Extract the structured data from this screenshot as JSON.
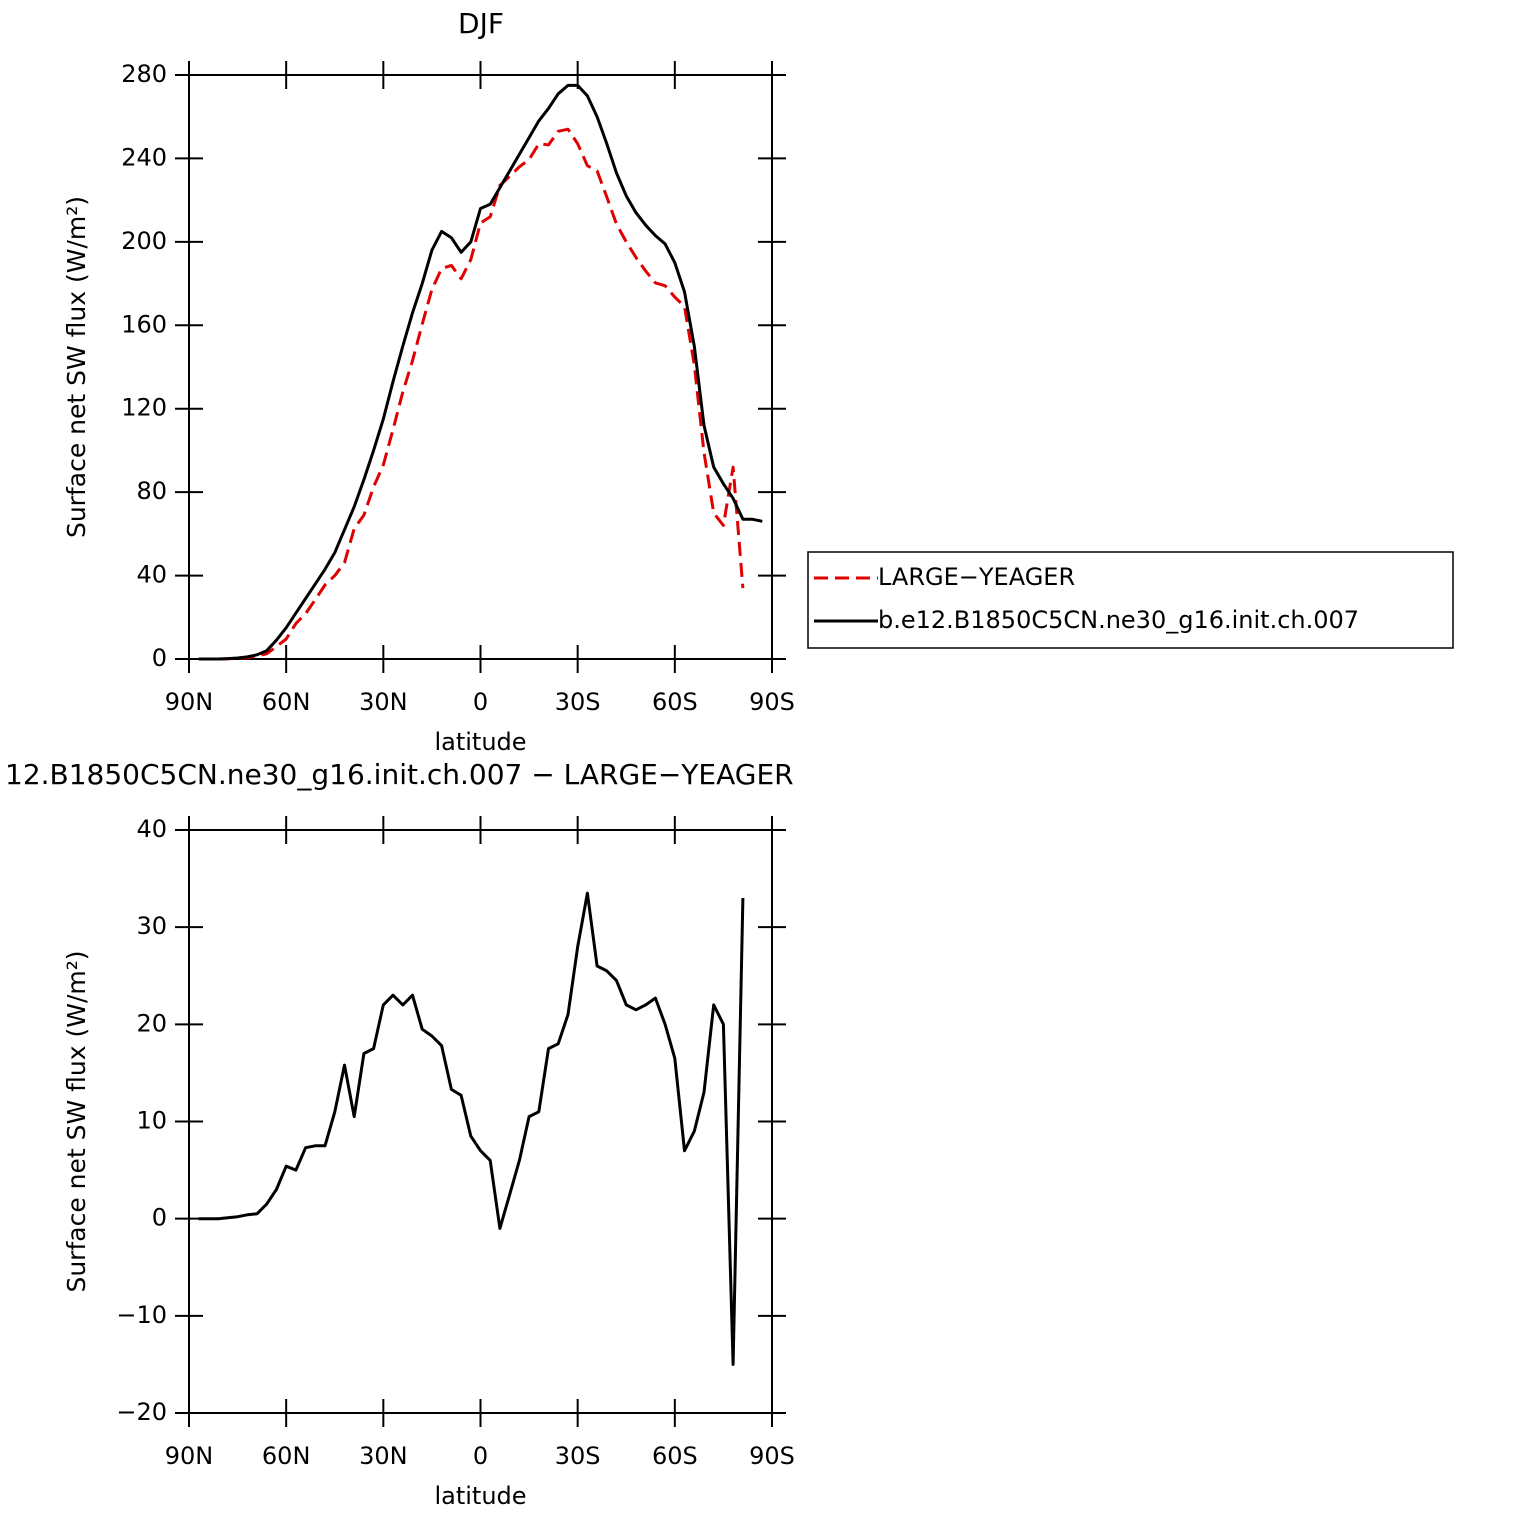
{
  "chart_data": [
    {
      "type": "line",
      "title": "DJF",
      "xlabel": "latitude",
      "ylabel": "Surface net SW flux (W/m²)",
      "x": [
        87,
        84,
        81,
        78,
        75,
        72,
        69,
        66,
        63,
        60,
        57,
        54,
        51,
        48,
        45,
        42,
        39,
        36,
        33,
        30,
        27,
        24,
        21,
        18,
        15,
        12,
        9,
        6,
        3,
        0,
        -3,
        -6,
        -9,
        -12,
        -15,
        -18,
        -21,
        -24,
        -27,
        -30,
        -33,
        -36,
        -39,
        -42,
        -45,
        -48,
        -51,
        -54,
        -57,
        -60,
        -63,
        -66,
        -69,
        -72,
        -75,
        -78,
        -81,
        -84,
        -87
      ],
      "series": [
        {
          "name": "LARGE−YEAGER",
          "color": "#e00000",
          "dashed": true,
          "values": [
            0,
            0,
            0,
            0.1,
            0.3,
            0.6,
            1.5,
            2.5,
            6,
            9.6,
            17,
            21.7,
            28.5,
            35.5,
            40,
            46.2,
            62.5,
            69,
            82.5,
            93,
            110,
            128,
            143,
            160.5,
            177.2,
            187.2,
            188.7,
            182.3,
            191.5,
            209,
            212,
            227,
            231.5,
            236,
            239.5,
            247,
            246.5,
            253,
            254,
            247,
            236.5,
            234,
            221.5,
            208.5,
            200,
            192.5,
            186,
            180.3,
            179,
            173.5,
            169,
            141,
            99,
            70,
            64,
            92,
            34,
            null,
            null
          ]
        },
        {
          "name": "b.e12.B1850C5CN.ne30_g16.init.ch.007",
          "color": "#000000",
          "dashed": false,
          "values": [
            0,
            0,
            0,
            0.2,
            0.5,
            1,
            2,
            4,
            9,
            15,
            22,
            29,
            36,
            43,
            51,
            62,
            73,
            86,
            100,
            115,
            133,
            150,
            166,
            180,
            196,
            205,
            202,
            195,
            200,
            216,
            218,
            226,
            234,
            242,
            250,
            258,
            264,
            271,
            275,
            275,
            270,
            260,
            247,
            233,
            222,
            214,
            208,
            203,
            199,
            190,
            176,
            150,
            112,
            92,
            84,
            77,
            67,
            67,
            66
          ]
        }
      ],
      "xlim": [
        90,
        -90
      ],
      "xticks": [
        {
          "value": 90,
          "label": "90N"
        },
        {
          "value": 60,
          "label": "60N"
        },
        {
          "value": 30,
          "label": "30N"
        },
        0,
        {
          "value": -30,
          "label": "30S"
        },
        {
          "value": -60,
          "label": "60S"
        },
        {
          "value": -90,
          "label": "90S"
        }
      ],
      "ylim": [
        0,
        280
      ],
      "yticks": [
        0,
        40,
        80,
        120,
        160,
        200,
        240,
        280
      ],
      "legend": "right"
    },
    {
      "type": "line",
      "title": "12.B1850C5CN.ne30_g16.init.ch.007 − LARGE−YEAGER",
      "xlabel": "latitude",
      "ylabel": "Surface net SW flux (W/m²)",
      "x": [
        87,
        84,
        81,
        78,
        75,
        72,
        69,
        66,
        63,
        60,
        57,
        54,
        51,
        48,
        45,
        42,
        39,
        36,
        33,
        30,
        27,
        24,
        21,
        18,
        15,
        12,
        9,
        6,
        3,
        0,
        -3,
        -6,
        -9,
        -12,
        -15,
        -18,
        -21,
        -24,
        -27,
        -30,
        -33,
        -36,
        -39,
        -42,
        -45,
        -48,
        -51,
        -54,
        -57,
        -60,
        -63,
        -66,
        -69,
        -72,
        -75,
        -78,
        -81,
        -84,
        -87
      ],
      "series": [
        {
          "color": "#000000",
          "dashed": false,
          "values": [
            0,
            0,
            0,
            0.1,
            0.2,
            0.4,
            0.5,
            1.5,
            3,
            5.4,
            5,
            7.3,
            7.5,
            7.5,
            11,
            15.8,
            10.5,
            17,
            17.5,
            22,
            23,
            22,
            23,
            19.5,
            18.8,
            17.8,
            13.3,
            12.7,
            8.5,
            7,
            6,
            -1,
            2.5,
            6,
            10.5,
            11,
            17.5,
            18,
            21,
            28,
            33.5,
            26,
            25.5,
            24.5,
            22,
            21.5,
            22,
            22.7,
            20,
            16.5,
            7,
            9,
            13,
            22,
            20,
            -15,
            33,
            null,
            null
          ]
        }
      ],
      "xlim": [
        90,
        -90
      ],
      "xticks": [
        {
          "value": 90,
          "label": "90N"
        },
        {
          "value": 60,
          "label": "60N"
        },
        {
          "value": 30,
          "label": "30N"
        },
        0,
        {
          "value": -30,
          "label": "30S"
        },
        {
          "value": -60,
          "label": "60S"
        },
        {
          "value": -90,
          "label": "90S"
        }
      ],
      "ylim": [
        -20,
        40
      ],
      "yticks": [
        {
          "value": -20,
          "label": "−20"
        },
        {
          "value": -10,
          "label": "−10"
        },
        0,
        10,
        20,
        30,
        40
      ]
    }
  ]
}
